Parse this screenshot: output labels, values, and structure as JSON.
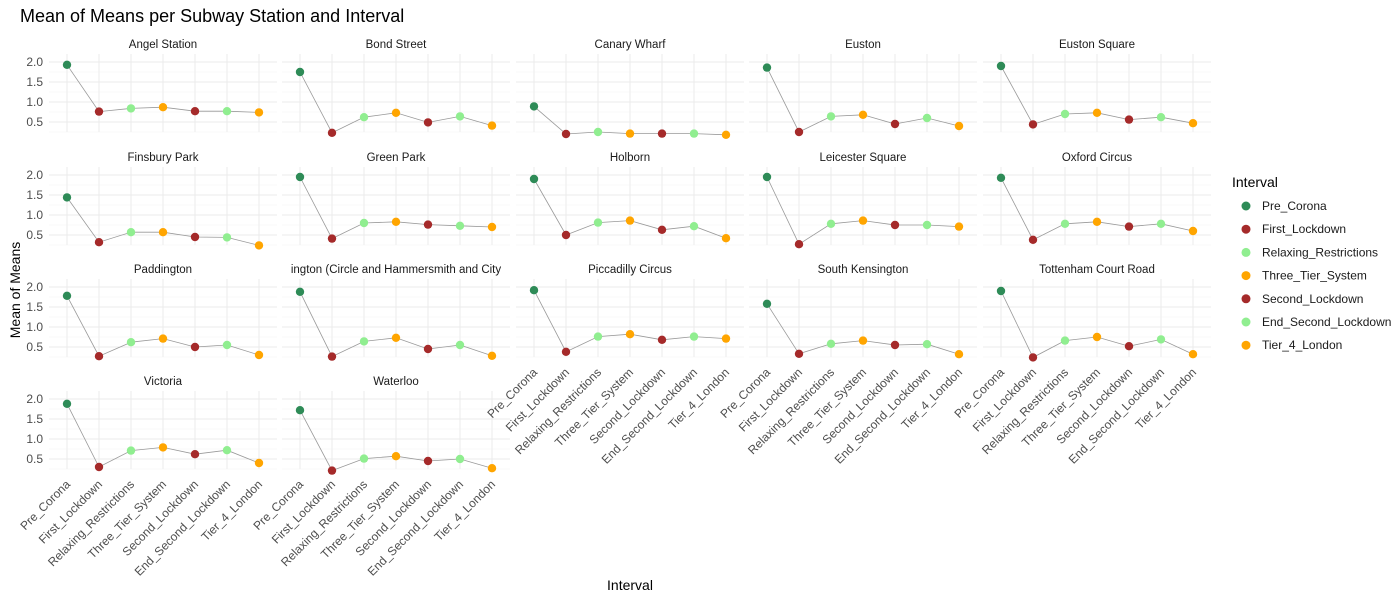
{
  "chart_data": {
    "type": "scatter",
    "title": "Mean of Means per Subway Station and Interval",
    "xlabel": "Interval",
    "ylabel": "Mean of Means",
    "categories": [
      "Pre_Corona",
      "First_Lockdown",
      "Relaxing_Restrictions",
      "Three_Tier_System",
      "Second_Lockdown",
      "End_Second_Lockdown",
      "Tier_4_London"
    ],
    "ylim": [
      0.25,
      2.2
    ],
    "yticks": [
      "0.5",
      "1.0",
      "1.5",
      "2.0"
    ],
    "grid": true,
    "facet_layout": "wrap, 5 columns",
    "legend": {
      "title": "Interval",
      "position": "right",
      "entries": [
        "Pre_Corona",
        "First_Lockdown",
        "Relaxing_Restrictions",
        "Three_Tier_System",
        "Second_Lockdown",
        "End_Second_Lockdown",
        "Tier_4_London"
      ],
      "colors": [
        "#2e8b57",
        "#a52a2a",
        "#90ee90",
        "#ffa500",
        "#a52a2a",
        "#90ee90",
        "#ffa500"
      ]
    },
    "line_color": "#999999",
    "panels": [
      {
        "name": "Angel Station",
        "values": [
          1.93,
          0.76,
          0.84,
          0.87,
          0.77,
          0.77,
          0.74
        ]
      },
      {
        "name": "Bond Street",
        "values": [
          1.75,
          0.23,
          0.62,
          0.73,
          0.49,
          0.64,
          0.41
        ]
      },
      {
        "name": "Canary Wharf",
        "values": [
          0.89,
          0.2,
          0.25,
          0.21,
          0.21,
          0.21,
          0.18
        ]
      },
      {
        "name": "Euston",
        "values": [
          1.86,
          0.25,
          0.64,
          0.68,
          0.45,
          0.6,
          0.4
        ]
      },
      {
        "name": "Euston Square",
        "values": [
          1.9,
          0.44,
          0.7,
          0.73,
          0.56,
          0.62,
          0.47
        ]
      },
      {
        "name": "Finsbury Park",
        "values": [
          1.44,
          0.32,
          0.57,
          0.57,
          0.45,
          0.44,
          0.24
        ]
      },
      {
        "name": "Green Park",
        "values": [
          1.95,
          0.41,
          0.8,
          0.83,
          0.76,
          0.73,
          0.7
        ]
      },
      {
        "name": "Holborn",
        "values": [
          1.9,
          0.5,
          0.81,
          0.86,
          0.63,
          0.72,
          0.42
        ]
      },
      {
        "name": "Leicester Square",
        "values": [
          1.95,
          0.27,
          0.78,
          0.86,
          0.75,
          0.75,
          0.71
        ]
      },
      {
        "name": "Oxford Circus",
        "values": [
          1.93,
          0.38,
          0.78,
          0.83,
          0.71,
          0.78,
          0.6
        ]
      },
      {
        "name": "Paddington",
        "values": [
          1.78,
          0.27,
          0.62,
          0.71,
          0.5,
          0.55,
          0.3
        ]
      },
      {
        "name": "ington (Circle and Hammersmith and City",
        "values": [
          1.88,
          0.26,
          0.64,
          0.73,
          0.45,
          0.55,
          0.28
        ]
      },
      {
        "name": "Piccadilly Circus",
        "values": [
          1.92,
          0.38,
          0.76,
          0.82,
          0.68,
          0.76,
          0.71
        ]
      },
      {
        "name": "South Kensington",
        "values": [
          1.58,
          0.33,
          0.58,
          0.66,
          0.55,
          0.57,
          0.32
        ]
      },
      {
        "name": "Tottenham Court Road",
        "values": [
          1.9,
          0.24,
          0.66,
          0.75,
          0.52,
          0.69,
          0.32
        ]
      },
      {
        "name": "Victoria",
        "values": [
          1.88,
          0.3,
          0.71,
          0.79,
          0.62,
          0.72,
          0.4
        ]
      },
      {
        "name": "Waterloo",
        "values": [
          1.72,
          0.21,
          0.51,
          0.57,
          0.45,
          0.5,
          0.27
        ]
      }
    ]
  }
}
